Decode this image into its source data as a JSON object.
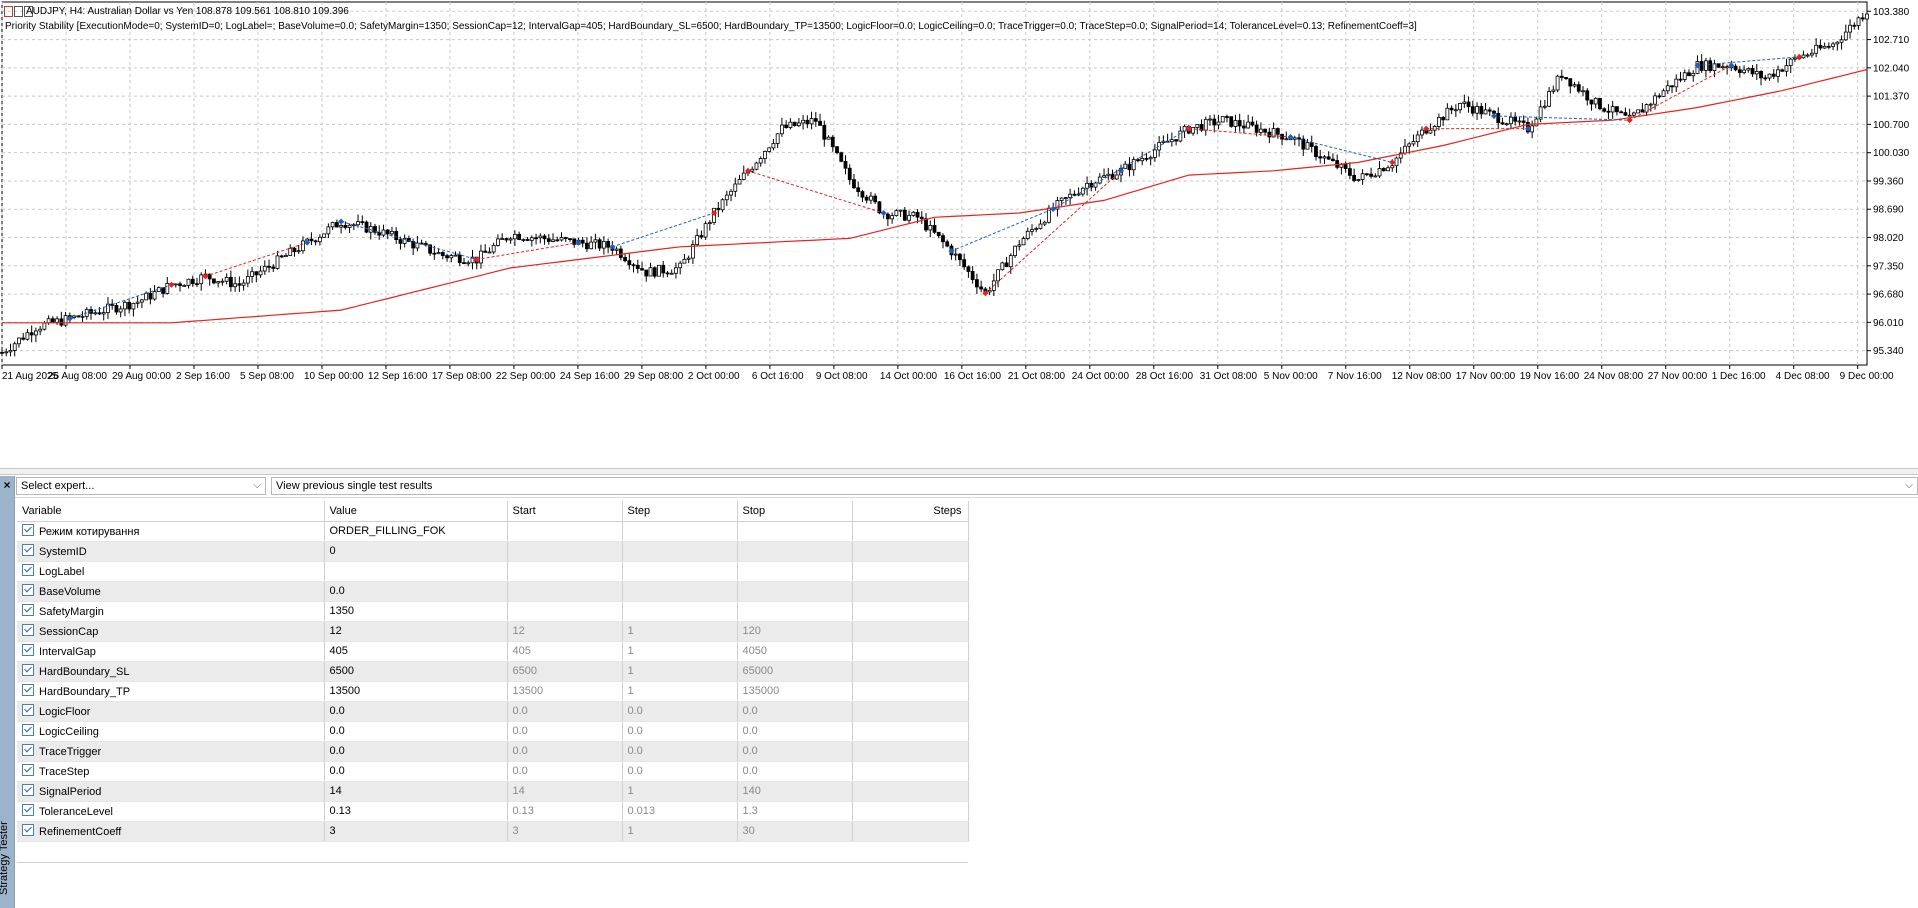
{
  "chart": {
    "symbol_line": "AUDJPY, H4:  Australian Dollar vs Yen  108.878 109.561 108.810 109.396",
    "indicator_line": "Priority Stability [ExecutionMode=0; SystemID=0; LogLabel=; BaseVolume=0.0; SafetyMargin=1350; SessionCap=12; IntervalGap=405; HardBoundary_SL=6500; HardBoundary_TP=13500; LogicFloor=0.0; LogicCeiling=0.0; TraceTrigger=0.0; TraceStep=0.0; SignalPeriod=14; ToleranceLevel=0.13; RefinementCoeff=3]",
    "price_labels": [
      "103.380",
      "102.710",
      "102.040",
      "101.370",
      "100.700",
      "100.030",
      "99.360",
      "98.690",
      "98.020",
      "97.350",
      "96.680",
      "96.010",
      "95.340"
    ],
    "time_labels": [
      "21 Aug 2025",
      "26 Aug 08:00",
      "29 Aug 00:00",
      "2 Sep 16:00",
      "5 Sep 08:00",
      "10 Sep 00:00",
      "12 Sep 16:00",
      "17 Sep 08:00",
      "22 Sep 00:00",
      "24 Sep 16:00",
      "29 Sep 08:00",
      "2 Oct 00:00",
      "6 Oct 16:00",
      "9 Oct 08:00",
      "14 Oct 00:00",
      "16 Oct 16:00",
      "21 Oct 08:00",
      "24 Oct 00:00",
      "28 Oct 16:00",
      "31 Oct 08:00",
      "5 Nov 00:00",
      "7 Nov 16:00",
      "12 Nov 08:00",
      "17 Nov 00:00",
      "19 Nov 16:00",
      "24 Nov 08:00",
      "27 Nov 00:00",
      "1 Dec 16:00",
      "4 Dec 08:00",
      "9 Dec 00:00"
    ],
    "colors": {
      "candle": "#000000",
      "ma": "#e8221e",
      "trade_line": "#1f5fbf",
      "sell_marker": "#e8221e",
      "buy_marker": "#1f5fbf",
      "grid": "#c8c8c8"
    }
  },
  "toolbar": {
    "expert_select": "Select expert...",
    "results_select": "View previous single test results"
  },
  "side_label": "Strategy Tester",
  "table": {
    "headers": [
      "Variable",
      "Value",
      "Start",
      "Step",
      "Stop",
      "Steps"
    ],
    "rows": [
      {
        "variable": "Режим котирування",
        "value": "ORDER_FILLING_FOK",
        "start": "",
        "step": "",
        "stop": ""
      },
      {
        "variable": "SystemID",
        "value": "0",
        "start": "",
        "step": "",
        "stop": ""
      },
      {
        "variable": "LogLabel",
        "value": "",
        "start": "",
        "step": "",
        "stop": ""
      },
      {
        "variable": "BaseVolume",
        "value": "0.0",
        "start": "",
        "step": "",
        "stop": ""
      },
      {
        "variable": "SafetyMargin",
        "value": "1350",
        "start": "",
        "step": "",
        "stop": ""
      },
      {
        "variable": "SessionCap",
        "value": "12",
        "start": "12",
        "step": "1",
        "stop": "120"
      },
      {
        "variable": "IntervalGap",
        "value": "405",
        "start": "405",
        "step": "1",
        "stop": "4050"
      },
      {
        "variable": "HardBoundary_SL",
        "value": "6500",
        "start": "6500",
        "step": "1",
        "stop": "65000"
      },
      {
        "variable": "HardBoundary_TP",
        "value": "13500",
        "start": "13500",
        "step": "1",
        "stop": "135000"
      },
      {
        "variable": "LogicFloor",
        "value": "0.0",
        "start": "0.0",
        "step": "0.0",
        "stop": "0.0"
      },
      {
        "variable": "LogicCeiling",
        "value": "0.0",
        "start": "0.0",
        "step": "0.0",
        "stop": "0.0"
      },
      {
        "variable": "TraceTrigger",
        "value": "0.0",
        "start": "0.0",
        "step": "0.0",
        "stop": "0.0"
      },
      {
        "variable": "TraceStep",
        "value": "0.0",
        "start": "0.0",
        "step": "0.0",
        "stop": "0.0"
      },
      {
        "variable": "SignalPeriod",
        "value": "14",
        "start": "14",
        "step": "1",
        "stop": "140"
      },
      {
        "variable": "ToleranceLevel",
        "value": "0.13",
        "start": "0.13",
        "step": "0.013",
        "stop": "1.3"
      },
      {
        "variable": "RefinementCoeff",
        "value": "3",
        "start": "3",
        "step": "1",
        "stop": "30"
      }
    ]
  },
  "chart_data": {
    "type": "line",
    "price_series": {
      "days": [
        0,
        2,
        4,
        6,
        8,
        10,
        12,
        14,
        16,
        18,
        20,
        22,
        24,
        26,
        28,
        30,
        32,
        34,
        36,
        38,
        40,
        42,
        44,
        46,
        48,
        50,
        52,
        54,
        56,
        58,
        60,
        62,
        64,
        66,
        68,
        70,
        72,
        74,
        76,
        78,
        80,
        82,
        84,
        86,
        88,
        90,
        92,
        94,
        96,
        98,
        100,
        102,
        104,
        106,
        108,
        110
      ],
      "prices": [
        95.3,
        95.9,
        96.1,
        96.3,
        96.5,
        96.9,
        97.1,
        96.9,
        97.4,
        97.9,
        98.4,
        98.2,
        97.9,
        97.6,
        97.5,
        98.1,
        98.0,
        97.9,
        97.8,
        97.2,
        97.3,
        98.6,
        99.6,
        100.6,
        100.8,
        99.4,
        98.6,
        98.5,
        97.7,
        96.7,
        97.9,
        98.7,
        99.3,
        99.6,
        100.1,
        100.6,
        100.8,
        100.6,
        100.4,
        99.9,
        99.4,
        99.8,
        100.6,
        101.2,
        100.9,
        100.6,
        101.9,
        101.2,
        100.8,
        101.5,
        102.1,
        102.1,
        101.8,
        102.3,
        102.6,
        103.4
      ]
    },
    "ma_series": {
      "days": [
        0,
        10,
        20,
        30,
        40,
        50,
        55,
        60,
        65,
        70,
        75,
        80,
        85,
        90,
        95,
        100,
        105,
        110
      ],
      "prices": [
        96.0,
        96.0,
        96.3,
        97.3,
        97.8,
        98.0,
        98.5,
        98.6,
        98.9,
        99.5,
        99.6,
        99.8,
        100.2,
        100.7,
        100.8,
        101.1,
        101.5,
        102.0
      ]
    },
    "ylim": [
      95.0,
      103.6
    ],
    "yticks": [
      103.38,
      102.71,
      102.04,
      101.37,
      100.7,
      100.03,
      99.36,
      98.69,
      98.02,
      97.35,
      96.68,
      96.01,
      95.34
    ],
    "grid": true,
    "legend": "none"
  }
}
